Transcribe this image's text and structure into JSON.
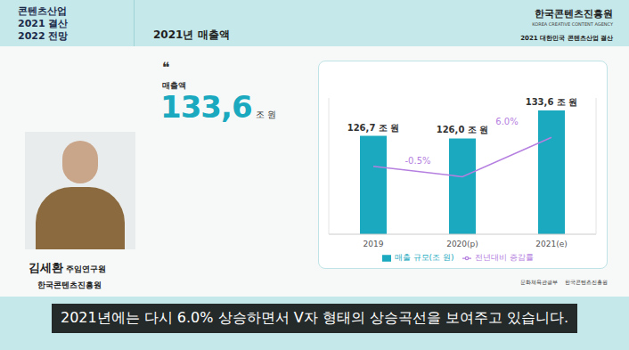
{
  "header": {
    "left_lines": [
      "콘텐츠산업",
      "2021 결산",
      "2022 전망"
    ],
    "title": "2021년 매출액",
    "org": "한국콘텐츠진흥원",
    "org_en": "KOREA CREATIVE CONTENT AGENCY",
    "event": "2021 대한민국 콘텐츠산업 결산"
  },
  "headline": {
    "quote": "❝",
    "label": "매출액",
    "value": "133,6",
    "unit": "조 원"
  },
  "speaker": {
    "name": "김세환",
    "title": "주임연구원",
    "org": "한국콘텐츠진흥원"
  },
  "footer_logos": [
    "문화체육관광부",
    "한국콘텐츠진흥원"
  ],
  "caption": "2021년에는 다시 6.0% 상승하면서 V자 형태의 상승곡선을 보여주고 있습니다.",
  "chart_data": {
    "type": "bar",
    "categories": [
      "2019",
      "2020(p)",
      "2021(e)"
    ],
    "series": [
      {
        "name": "매출 규모(조 원)",
        "type": "bar",
        "color": "#1aa9be",
        "values": [
          126.7,
          126.0,
          133.6
        ],
        "value_labels": [
          "126,7 조 원",
          "126,0 조 원",
          "133,6 조 원"
        ],
        "data_labels": true
      },
      {
        "name": "전년대비 증감률",
        "type": "line",
        "color": "#b57fe0",
        "axis": "y2",
        "marker": "none",
        "values": [
          1.2,
          -0.5,
          6.0
        ],
        "value_labels": [
          null,
          "-0.5%",
          "6.0%"
        ],
        "data_labels": true
      }
    ],
    "ylim": [
      100,
      137
    ],
    "yticks": [],
    "y2lim": [
      -10,
      12.5
    ],
    "y2ticks": [],
    "tick_labels": "x",
    "legend": "bottom",
    "grid": false
  }
}
